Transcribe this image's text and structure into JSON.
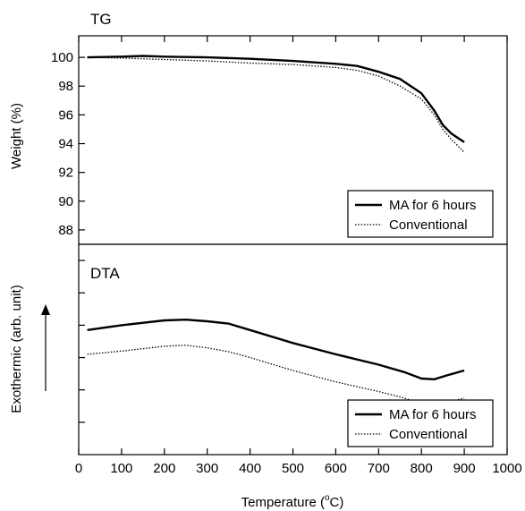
{
  "chart_data": [
    {
      "panel": "TG",
      "type": "line",
      "label": "TG",
      "ylabel": "Weight (%)",
      "ylim": [
        87,
        101.5
      ],
      "yticks": [
        88,
        90,
        92,
        94,
        96,
        98,
        100
      ],
      "xlim": [
        0,
        1000
      ],
      "legend_position": "bottom-right",
      "series": [
        {
          "name": "MA for 6 hours",
          "style": "solid",
          "x": [
            20,
            100,
            150,
            200,
            300,
            400,
            500,
            600,
            650,
            700,
            750,
            800,
            830,
            850,
            870,
            900
          ],
          "y": [
            100.0,
            100.05,
            100.1,
            100.05,
            100.0,
            99.9,
            99.75,
            99.55,
            99.4,
            99.0,
            98.5,
            97.5,
            96.3,
            95.3,
            94.7,
            94.1
          ]
        },
        {
          "name": "Conventional",
          "style": "dotted",
          "x": [
            20,
            100,
            200,
            300,
            400,
            500,
            600,
            650,
            700,
            750,
            800,
            830,
            850,
            870,
            900
          ],
          "y": [
            100.0,
            99.95,
            99.85,
            99.75,
            99.6,
            99.5,
            99.3,
            99.1,
            98.7,
            98.0,
            97.1,
            96.0,
            95.0,
            94.3,
            93.4
          ]
        }
      ]
    },
    {
      "panel": "DTA",
      "type": "line",
      "label": "DTA",
      "ylabel": "Exothermic (arb. unit)",
      "ylabel_arrow": "up",
      "xlabel": "Temperature (°C)",
      "xlabel_parts": {
        "main": "Temperature (",
        "superscript": "o",
        "tail": "C)"
      },
      "xlim": [
        0,
        1000
      ],
      "xticks": [
        0,
        100,
        200,
        300,
        400,
        500,
        600,
        700,
        800,
        900,
        1000
      ],
      "ylim": [
        0,
        6.5
      ],
      "ytick_marks": 6,
      "yticks_unlabeled": true,
      "legend_position": "bottom-right",
      "series": [
        {
          "name": "MA for 6 hours",
          "style": "solid",
          "x": [
            20,
            100,
            200,
            250,
            300,
            350,
            400,
            500,
            600,
            700,
            760,
            800,
            830,
            860,
            900
          ],
          "y": [
            3.85,
            4.0,
            4.15,
            4.17,
            4.12,
            4.05,
            3.85,
            3.45,
            3.1,
            2.78,
            2.55,
            2.35,
            2.33,
            2.45,
            2.6
          ]
        },
        {
          "name": "Conventional",
          "style": "dotted",
          "x": [
            20,
            100,
            200,
            250,
            300,
            350,
            400,
            500,
            600,
            700,
            760,
            800,
            830,
            860,
            900
          ],
          "y": [
            3.1,
            3.2,
            3.35,
            3.38,
            3.3,
            3.18,
            3.0,
            2.6,
            2.25,
            1.95,
            1.75,
            1.55,
            1.45,
            1.6,
            1.75
          ]
        }
      ]
    }
  ]
}
